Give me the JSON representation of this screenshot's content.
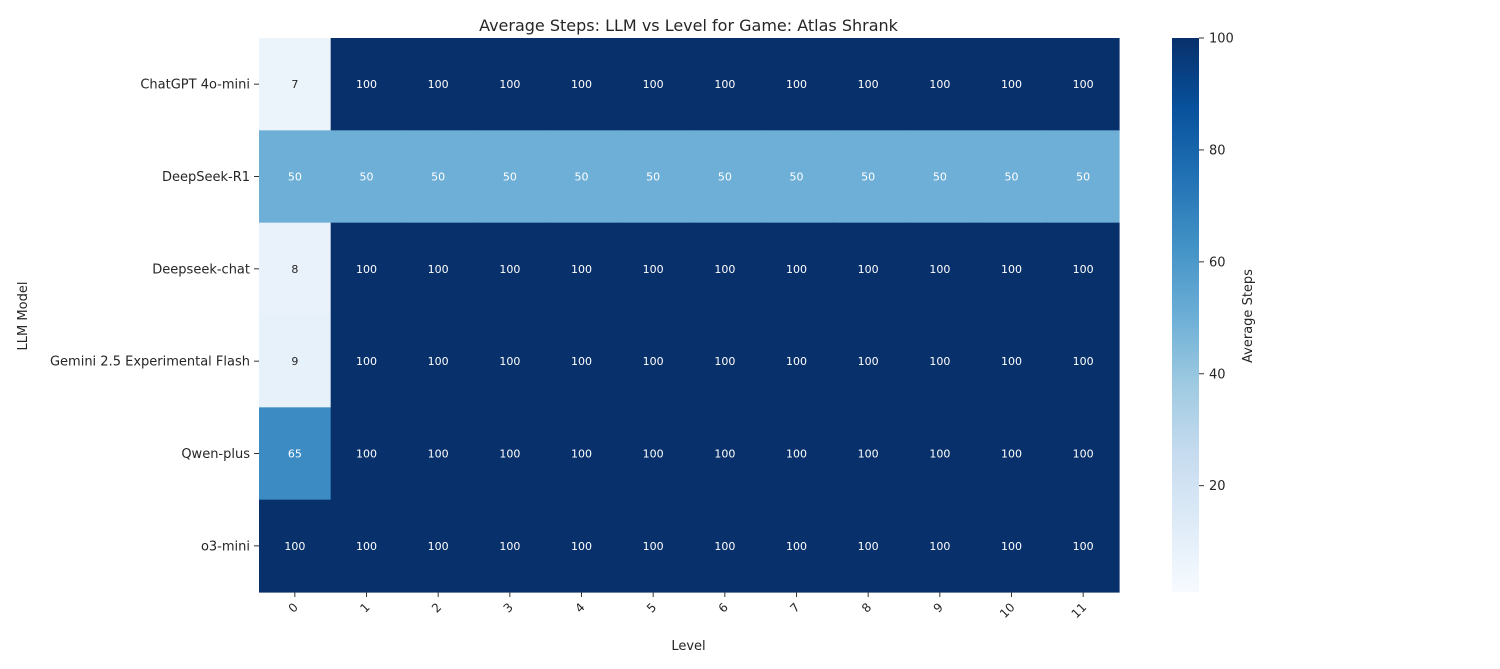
{
  "chart_data": {
    "type": "heatmap",
    "title": "Average Steps: LLM vs Level for Game: Atlas Shrank",
    "xlabel": "Level",
    "ylabel": "LLM Model",
    "x_categories": [
      "0",
      "1",
      "2",
      "3",
      "4",
      "5",
      "6",
      "7",
      "8",
      "9",
      "10",
      "11"
    ],
    "y_categories": [
      "ChatGPT 4o-mini",
      "DeepSeek-R1",
      "Deepseek-chat",
      "Gemini 2.5 Experimental Flash",
      "Qwen-plus",
      "o3-mini"
    ],
    "values": [
      [
        7,
        100,
        100,
        100,
        100,
        100,
        100,
        100,
        100,
        100,
        100,
        100
      ],
      [
        50,
        50,
        50,
        50,
        50,
        50,
        50,
        50,
        50,
        50,
        50,
        50
      ],
      [
        8,
        100,
        100,
        100,
        100,
        100,
        100,
        100,
        100,
        100,
        100,
        100
      ],
      [
        9,
        100,
        100,
        100,
        100,
        100,
        100,
        100,
        100,
        100,
        100,
        100
      ],
      [
        65,
        100,
        100,
        100,
        100,
        100,
        100,
        100,
        100,
        100,
        100,
        100
      ],
      [
        100,
        100,
        100,
        100,
        100,
        100,
        100,
        100,
        100,
        100,
        100,
        100
      ]
    ],
    "colorbar": {
      "label": "Average Steps",
      "vmin": 1,
      "vmax": 100,
      "ticks": [
        20,
        40,
        60,
        80,
        100
      ],
      "colormap": "Blues"
    },
    "annotations": true
  }
}
